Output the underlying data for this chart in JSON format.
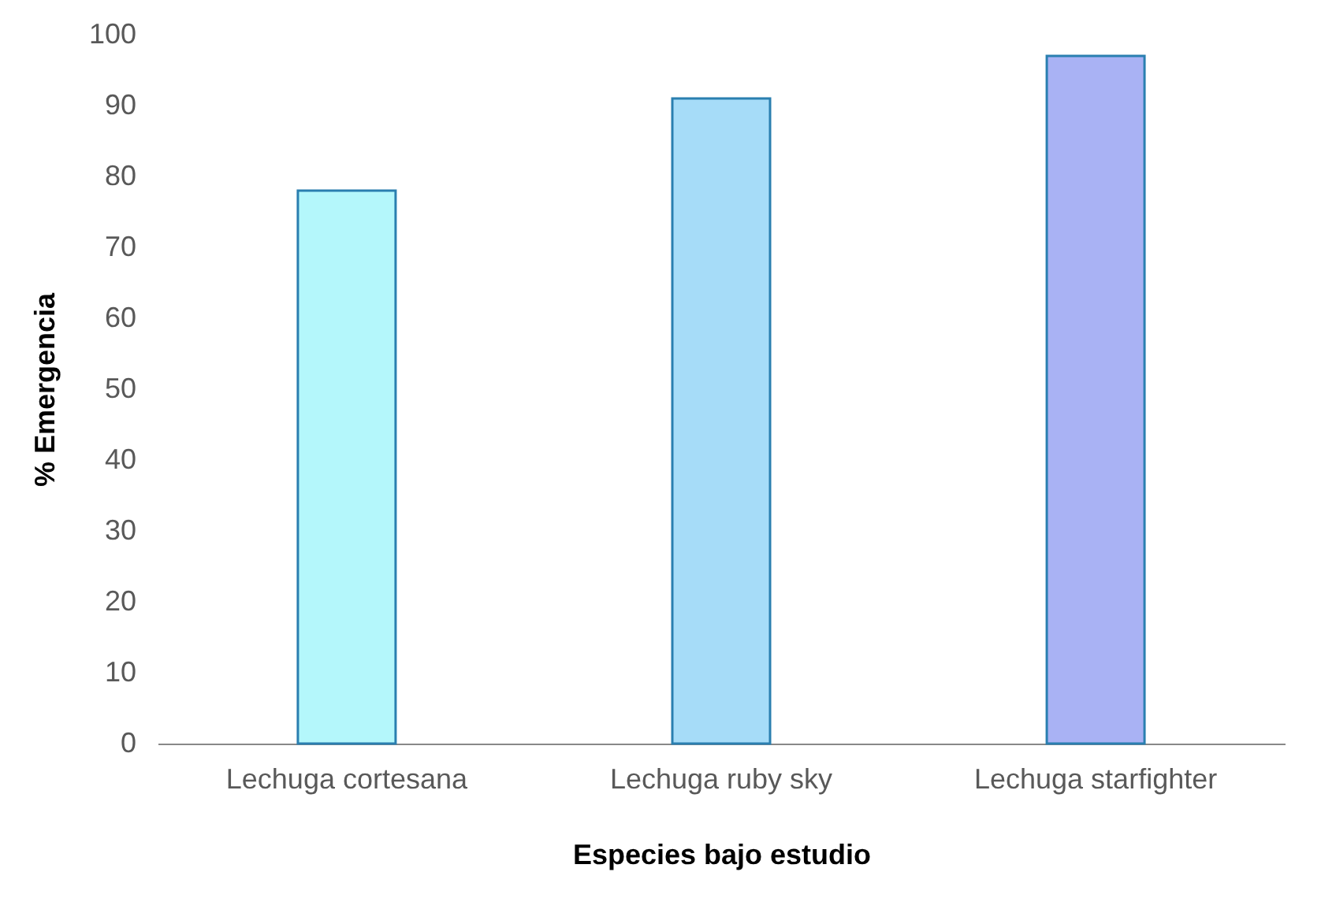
{
  "chart_data": {
    "type": "bar",
    "categories": [
      "Lechuga cortesana",
      "Lechuga ruby sky",
      "Lechuga starfighter"
    ],
    "values": [
      78,
      91,
      97
    ],
    "colors": [
      "#b4f7fb",
      "#a6dcf8",
      "#a9b2f4"
    ],
    "xlabel": "Especies bajo estudio",
    "ylabel": "% Emergencia",
    "ylim": [
      0,
      100
    ],
    "yticks": [
      0,
      10,
      20,
      30,
      40,
      50,
      60,
      70,
      80,
      90,
      100
    ],
    "grid": false,
    "legend": false
  }
}
